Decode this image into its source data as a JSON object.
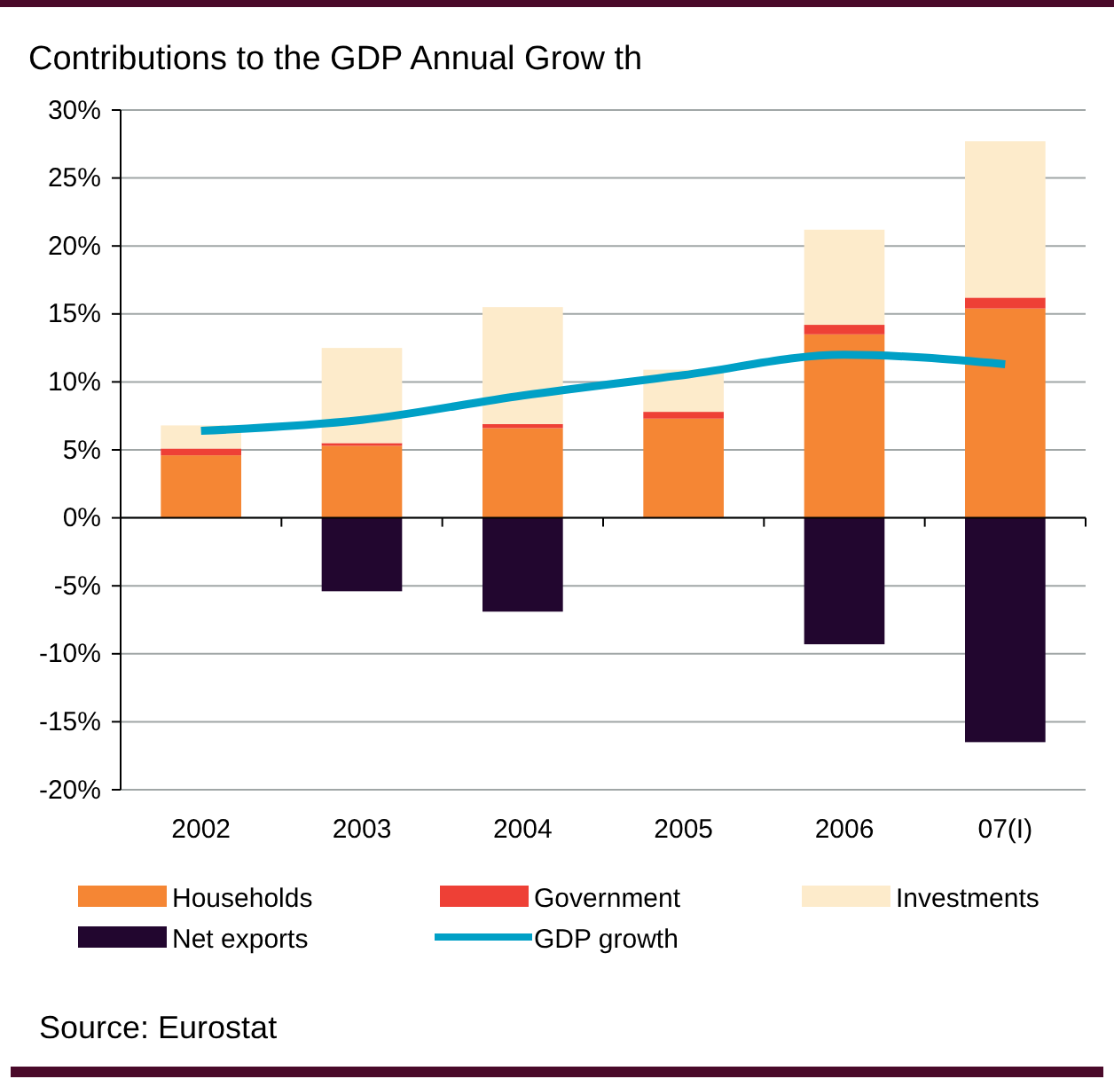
{
  "chart_data": {
    "type": "bar",
    "title": "Contributions to the GDP Annual Grow th",
    "stacked": true,
    "categories": [
      "2002",
      "2003",
      "2004",
      "2005",
      "2006",
      "07(I)"
    ],
    "series": [
      {
        "name": "Households",
        "color": "#f58634",
        "values": [
          4.6,
          5.3,
          6.6,
          7.3,
          13.5,
          15.4
        ]
      },
      {
        "name": "Government",
        "color": "#ee4036",
        "values": [
          0.5,
          0.2,
          0.3,
          0.5,
          0.7,
          0.8
        ]
      },
      {
        "name": "Investments",
        "color": "#fdebcb",
        "values": [
          1.7,
          7.0,
          8.6,
          3.1,
          7.0,
          11.5
        ]
      },
      {
        "name": "Net exports",
        "color": "#22062f",
        "values": [
          null,
          -5.4,
          -6.9,
          null,
          -9.3,
          -16.5
        ]
      },
      {
        "name": "GDP growth",
        "type": "line",
        "color": "#00a0c6",
        "values": [
          6.4,
          7.2,
          9.0,
          10.5,
          12.0,
          11.3
        ]
      }
    ],
    "ylim": [
      -20,
      30
    ],
    "yticks": [
      {
        "value": -20,
        "label": "-20%"
      },
      {
        "value": -15,
        "label": "-15%"
      },
      {
        "value": -10,
        "label": "-10%"
      },
      {
        "value": -5,
        "label": "-5%"
      },
      {
        "value": 0,
        "label": "0%"
      },
      {
        "value": 5,
        "label": "5%"
      },
      {
        "value": 10,
        "label": "10%"
      },
      {
        "value": 15,
        "label": "15%"
      },
      {
        "value": 20,
        "label": "20%"
      },
      {
        "value": 25,
        "label": "25%"
      },
      {
        "value": 30,
        "label": "30%"
      }
    ],
    "grid": "y",
    "legend": "bottom",
    "line_style": "solid",
    "annotations": [
      "Source: Eurostat"
    ]
  }
}
